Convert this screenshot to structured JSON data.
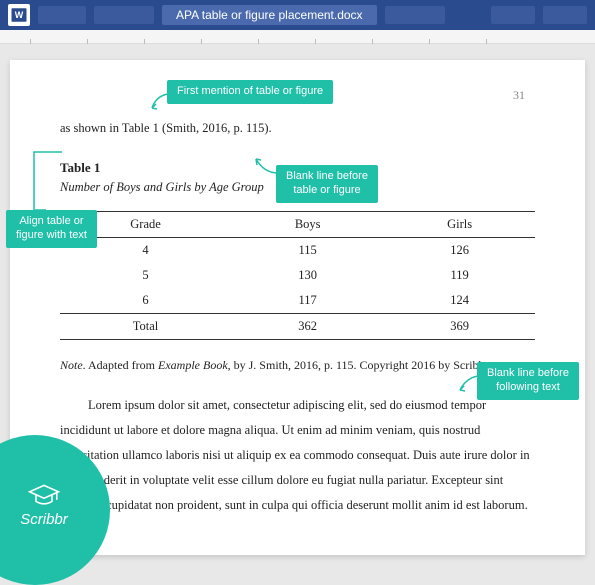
{
  "titlebar": {
    "doc_title": "APA table or figure placement.docx",
    "accent_color": "#2a4b8d",
    "ghost_tab_color": "#3a5a9d"
  },
  "page": {
    "page_number": "31",
    "intro_line": "as shown in Table 1 (Smith, 2016, p. 115).",
    "table_number": "Table 1",
    "table_title": "Number of Boys and Girls by Age Group",
    "table": {
      "columns": [
        "Grade",
        "Boys",
        "Girls"
      ],
      "rows": [
        [
          "4",
          "115",
          "126"
        ],
        [
          "5",
          "130",
          "119"
        ],
        [
          "6",
          "117",
          "124"
        ]
      ],
      "total_row": [
        "Total",
        "362",
        "369"
      ]
    },
    "note_label": "Note",
    "note_text_before_title": ". Adapted from ",
    "note_book_title": "Example Book",
    "note_text_after_title": ", by J. Smith, 2016, p. 115. Copyright 2016 by Scribbr.",
    "lorem": "Lorem ipsum dolor sit amet, consectetur adipiscing elit, sed do eiusmod tempor incididunt ut labore et dolore magna aliqua. Ut enim ad minim veniam, quis nostrud exercitation ullamco laboris nisi ut aliquip ex ea commodo consequat. Duis aute irure dolor in reprehenderit in voluptate velit esse cillum dolore eu fugiat nulla pariatur. Excepteur sint occaecat cupidatat non proident, sunt in culpa qui officia deserunt mollit anim id est laborum."
  },
  "callouts": {
    "first_mention": "First mention of table or figure",
    "blank_before": "Blank line before\ntable or figure",
    "align_text": "Align table or\nfigure with text",
    "blank_after": "Blank line before\nfollowing text",
    "color": "#1fbfa8"
  },
  "brand": {
    "name": "Scribbr"
  }
}
